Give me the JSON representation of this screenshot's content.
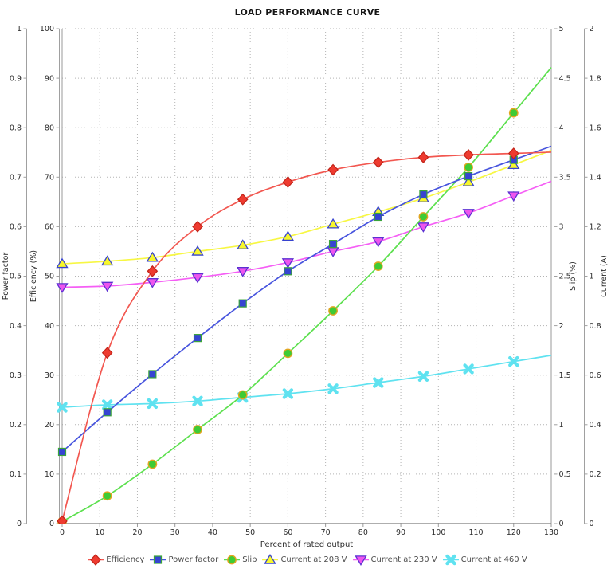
{
  "title": "LOAD PERFORMANCE CURVE",
  "x_axis": {
    "label": "Percent of rated output",
    "min": 0,
    "max": 130,
    "tick_step": 10
  },
  "y_axes": [
    {
      "id": "power_factor",
      "label": "Power factor",
      "min": 0,
      "max": 1,
      "tick_step": 0.1,
      "side": "left"
    },
    {
      "id": "efficiency",
      "label": "Efficiency (%)",
      "min": 0,
      "max": 100,
      "tick_step": 10,
      "side": "left"
    },
    {
      "id": "slip",
      "label": "Slip (%)",
      "min": 0,
      "max": 5,
      "tick_step": 0.5,
      "side": "right"
    },
    {
      "id": "current",
      "label": "Current (A)",
      "min": 0,
      "max": 2,
      "tick_step": 0.2,
      "side": "right"
    }
  ],
  "chart_data": {
    "type": "line",
    "title": "LOAD PERFORMANCE CURVE",
    "xlabel": "Percent of rated output",
    "grid": true,
    "legend_position": "bottom",
    "x": [
      0,
      12,
      24,
      36,
      48,
      60,
      72,
      84,
      96,
      108,
      120
    ],
    "series": [
      {
        "name": "Efficiency",
        "axis": "efficiency",
        "marker": "diamond",
        "line_color": "#f25750",
        "fill": "#ee3b30",
        "stroke": "#c22318",
        "values": [
          0.5,
          34.5,
          51,
          60,
          65.5,
          69,
          71.5,
          73,
          74,
          74.5,
          74.8
        ]
      },
      {
        "name": "Power factor",
        "axis": "power_factor",
        "marker": "square",
        "line_color": "#4754de",
        "fill": "#3644d2",
        "stroke": "#3aa43a",
        "values": [
          0.145,
          0.225,
          0.302,
          0.375,
          0.445,
          0.51,
          0.565,
          0.62,
          0.665,
          0.702,
          0.735
        ]
      },
      {
        "name": "Slip",
        "axis": "slip",
        "marker": "circle",
        "line_color": "#5ce04e",
        "fill": "#3ecb35",
        "stroke": "#e2a51f",
        "values": [
          0.02,
          0.28,
          0.6,
          0.95,
          1.3,
          1.72,
          2.15,
          2.6,
          3.1,
          3.6,
          4.15
        ]
      },
      {
        "name": "Current at 208 V",
        "axis": "current",
        "marker": "triangle-up",
        "line_color": "#f7f743",
        "fill": "#f7f72c",
        "stroke": "#3743cf",
        "values": [
          1.05,
          1.06,
          1.075,
          1.1,
          1.125,
          1.16,
          1.21,
          1.26,
          1.315,
          1.38,
          1.45
        ]
      },
      {
        "name": "Current at 230 V",
        "axis": "current",
        "marker": "triangle-down",
        "line_color": "#f55ef5",
        "fill": "#ee55ee",
        "stroke": "#5c31d2",
        "values": [
          0.955,
          0.96,
          0.975,
          0.995,
          1.02,
          1.055,
          1.1,
          1.14,
          1.2,
          1.255,
          1.325
        ]
      },
      {
        "name": "Current at 460 V",
        "axis": "current",
        "marker": "x",
        "line_color": "#5fe2f0",
        "fill": "#5fe2f0",
        "stroke": "#5fe2f0",
        "values": [
          0.47,
          0.48,
          0.485,
          0.495,
          0.51,
          0.525,
          0.545,
          0.57,
          0.595,
          0.625,
          0.655
        ]
      }
    ],
    "colors": {
      "grid": "#b3b3b3",
      "axis_line": "#a0a0a0",
      "tick_text": "#2b2b2b",
      "legend_text": "#4d4d4d"
    }
  },
  "legend": {
    "items": [
      "Efficiency",
      "Power factor",
      "Slip",
      "Current at 208 V",
      "Current at 230 V",
      "Current at 460 V"
    ]
  }
}
